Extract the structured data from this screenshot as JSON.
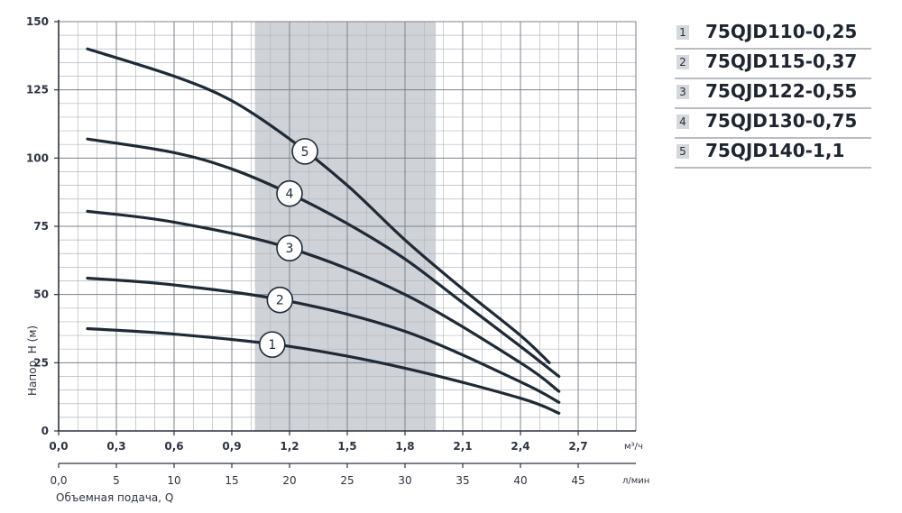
{
  "chart_data": {
    "type": "line",
    "ylabel": "Напор, H (м)",
    "xlabel": "Объемная подача, Q",
    "x_unit_top": "м³/ч",
    "x_unit_bottom": "л/мин",
    "ylim": [
      0,
      150
    ],
    "xlim_m3h": [
      0,
      3.0
    ],
    "y_ticks": [
      "0",
      "25",
      "50",
      "75",
      "100",
      "125",
      "150"
    ],
    "x_ticks_m3h": [
      "0,0",
      "0,3",
      "0,6",
      "0,9",
      "1,2",
      "1,5",
      "1,8",
      "2,1",
      "2,4",
      "2,7"
    ],
    "x_ticks_lmin": [
      "0,0",
      "5",
      "10",
      "15",
      "20",
      "25",
      "30",
      "35",
      "40",
      "45"
    ],
    "grid": true,
    "shaded_range_m3h": [
      1.02,
      1.96
    ],
    "series": [
      {
        "name": "75QJD110-0,25",
        "label": "1",
        "x": [
          0.15,
          0.6,
          1.2,
          1.8,
          2.4,
          2.6
        ],
        "y": [
          37.5,
          35.5,
          31,
          23,
          12,
          6.5
        ],
        "marker": {
          "x": 1.11,
          "label": "1"
        }
      },
      {
        "name": "75QJD115-0,37",
        "label": "2",
        "x": [
          0.15,
          0.6,
          1.2,
          1.8,
          2.4,
          2.6
        ],
        "y": [
          56,
          53.5,
          47.5,
          36.5,
          18,
          10.5
        ],
        "marker": {
          "x": 1.15,
          "label": "2"
        }
      },
      {
        "name": "75QJD122-0,55",
        "label": "3",
        "x": [
          0.15,
          0.6,
          1.2,
          1.8,
          2.4,
          2.6
        ],
        "y": [
          80.5,
          76.5,
          67,
          50,
          25,
          14.5
        ],
        "marker": {
          "x": 1.2,
          "label": "3"
        }
      },
      {
        "name": "75QJD130-0,75",
        "label": "4",
        "x": [
          0.15,
          0.6,
          0.9,
          1.2,
          1.5,
          1.8,
          2.1,
          2.4,
          2.6
        ],
        "y": [
          107,
          102,
          96,
          87,
          76,
          63,
          47,
          31,
          20
        ],
        "marker": {
          "x": 1.2,
          "label": "4"
        }
      },
      {
        "name": "75QJD140-1,1",
        "label": "5",
        "x": [
          0.15,
          0.6,
          0.9,
          1.2,
          1.5,
          1.8,
          2.1,
          2.4,
          2.55
        ],
        "y": [
          140,
          130,
          121,
          107,
          90,
          70,
          52,
          35,
          25
        ],
        "marker": {
          "x": 1.28,
          "label": "5"
        }
      }
    ]
  },
  "legend": [
    {
      "num": "1",
      "name": "75QJD110-0,25"
    },
    {
      "num": "2",
      "name": "75QJD115-0,37"
    },
    {
      "num": "3",
      "name": "75QJD122-0,55"
    },
    {
      "num": "4",
      "name": "75QJD130-0,75"
    },
    {
      "num": "5",
      "name": "75QJD140-1,1"
    }
  ]
}
